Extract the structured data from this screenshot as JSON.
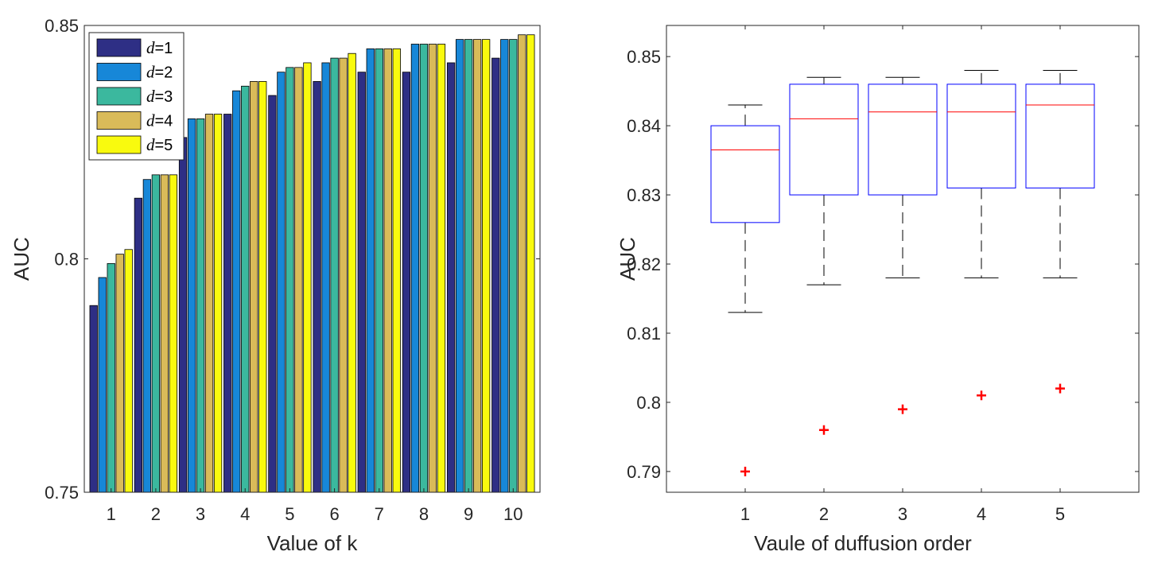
{
  "chart_data": [
    {
      "type": "bar",
      "title": "",
      "xlabel": "Value of k",
      "ylabel": "AUC",
      "categories": [
        "1",
        "2",
        "3",
        "4",
        "5",
        "6",
        "7",
        "8",
        "9",
        "10"
      ],
      "ylim": [
        0.75,
        0.85
      ],
      "yticks": [
        "0.75",
        "0.8",
        "0.85"
      ],
      "yticks_values": [
        0.75,
        0.8,
        0.85
      ],
      "legend_position": "top-left",
      "series": [
        {
          "name": "d",
          "label_value": "=1",
          "color": "#2e2f85",
          "values": [
            0.79,
            0.813,
            0.826,
            0.831,
            0.835,
            0.838,
            0.84,
            0.84,
            0.842,
            0.843
          ]
        },
        {
          "name": "d",
          "label_value": "=2",
          "color": "#1787d8",
          "values": [
            0.796,
            0.817,
            0.83,
            0.836,
            0.84,
            0.842,
            0.845,
            0.846,
            0.847,
            0.847
          ]
        },
        {
          "name": "d",
          "label_value": "=3",
          "color": "#3bb89e",
          "values": [
            0.799,
            0.818,
            0.83,
            0.837,
            0.841,
            0.843,
            0.845,
            0.846,
            0.847,
            0.847
          ]
        },
        {
          "name": "d",
          "label_value": "=4",
          "color": "#d9bb59",
          "values": [
            0.801,
            0.818,
            0.831,
            0.838,
            0.841,
            0.843,
            0.845,
            0.846,
            0.847,
            0.848
          ]
        },
        {
          "name": "d",
          "label_value": "=5",
          "color": "#f9fa0e",
          "values": [
            0.802,
            0.818,
            0.831,
            0.838,
            0.842,
            0.844,
            0.845,
            0.846,
            0.847,
            0.848
          ]
        }
      ]
    },
    {
      "type": "box",
      "title": "",
      "xlabel": "Vaule of duffusion order",
      "ylabel": "AUC",
      "categories": [
        "1",
        "2",
        "3",
        "4",
        "5"
      ],
      "ylim": [
        0.787,
        0.8545
      ],
      "yticks": [
        "0.79",
        "0.8",
        "0.81",
        "0.82",
        "0.83",
        "0.84",
        "0.85"
      ],
      "yticks_values": [
        0.79,
        0.8,
        0.81,
        0.82,
        0.83,
        0.84,
        0.85
      ],
      "box_color": "#0000ff",
      "median_color": "#ff0000",
      "outlier_color": "#ff0000",
      "whisker_color": "#000000",
      "boxes": [
        {
          "category": "1",
          "whisker_low": 0.813,
          "q1": 0.826,
          "median": 0.8365,
          "q3": 0.84,
          "whisker_high": 0.843,
          "outliers": [
            0.79
          ]
        },
        {
          "category": "2",
          "whisker_low": 0.817,
          "q1": 0.83,
          "median": 0.841,
          "q3": 0.846,
          "whisker_high": 0.847,
          "outliers": [
            0.796
          ]
        },
        {
          "category": "3",
          "whisker_low": 0.818,
          "q1": 0.83,
          "median": 0.842,
          "q3": 0.846,
          "whisker_high": 0.847,
          "outliers": [
            0.799
          ]
        },
        {
          "category": "4",
          "whisker_low": 0.818,
          "q1": 0.831,
          "median": 0.842,
          "q3": 0.846,
          "whisker_high": 0.848,
          "outliers": [
            0.801
          ]
        },
        {
          "category": "5",
          "whisker_low": 0.818,
          "q1": 0.831,
          "median": 0.843,
          "q3": 0.846,
          "whisker_high": 0.848,
          "outliers": [
            0.802
          ]
        }
      ]
    }
  ]
}
